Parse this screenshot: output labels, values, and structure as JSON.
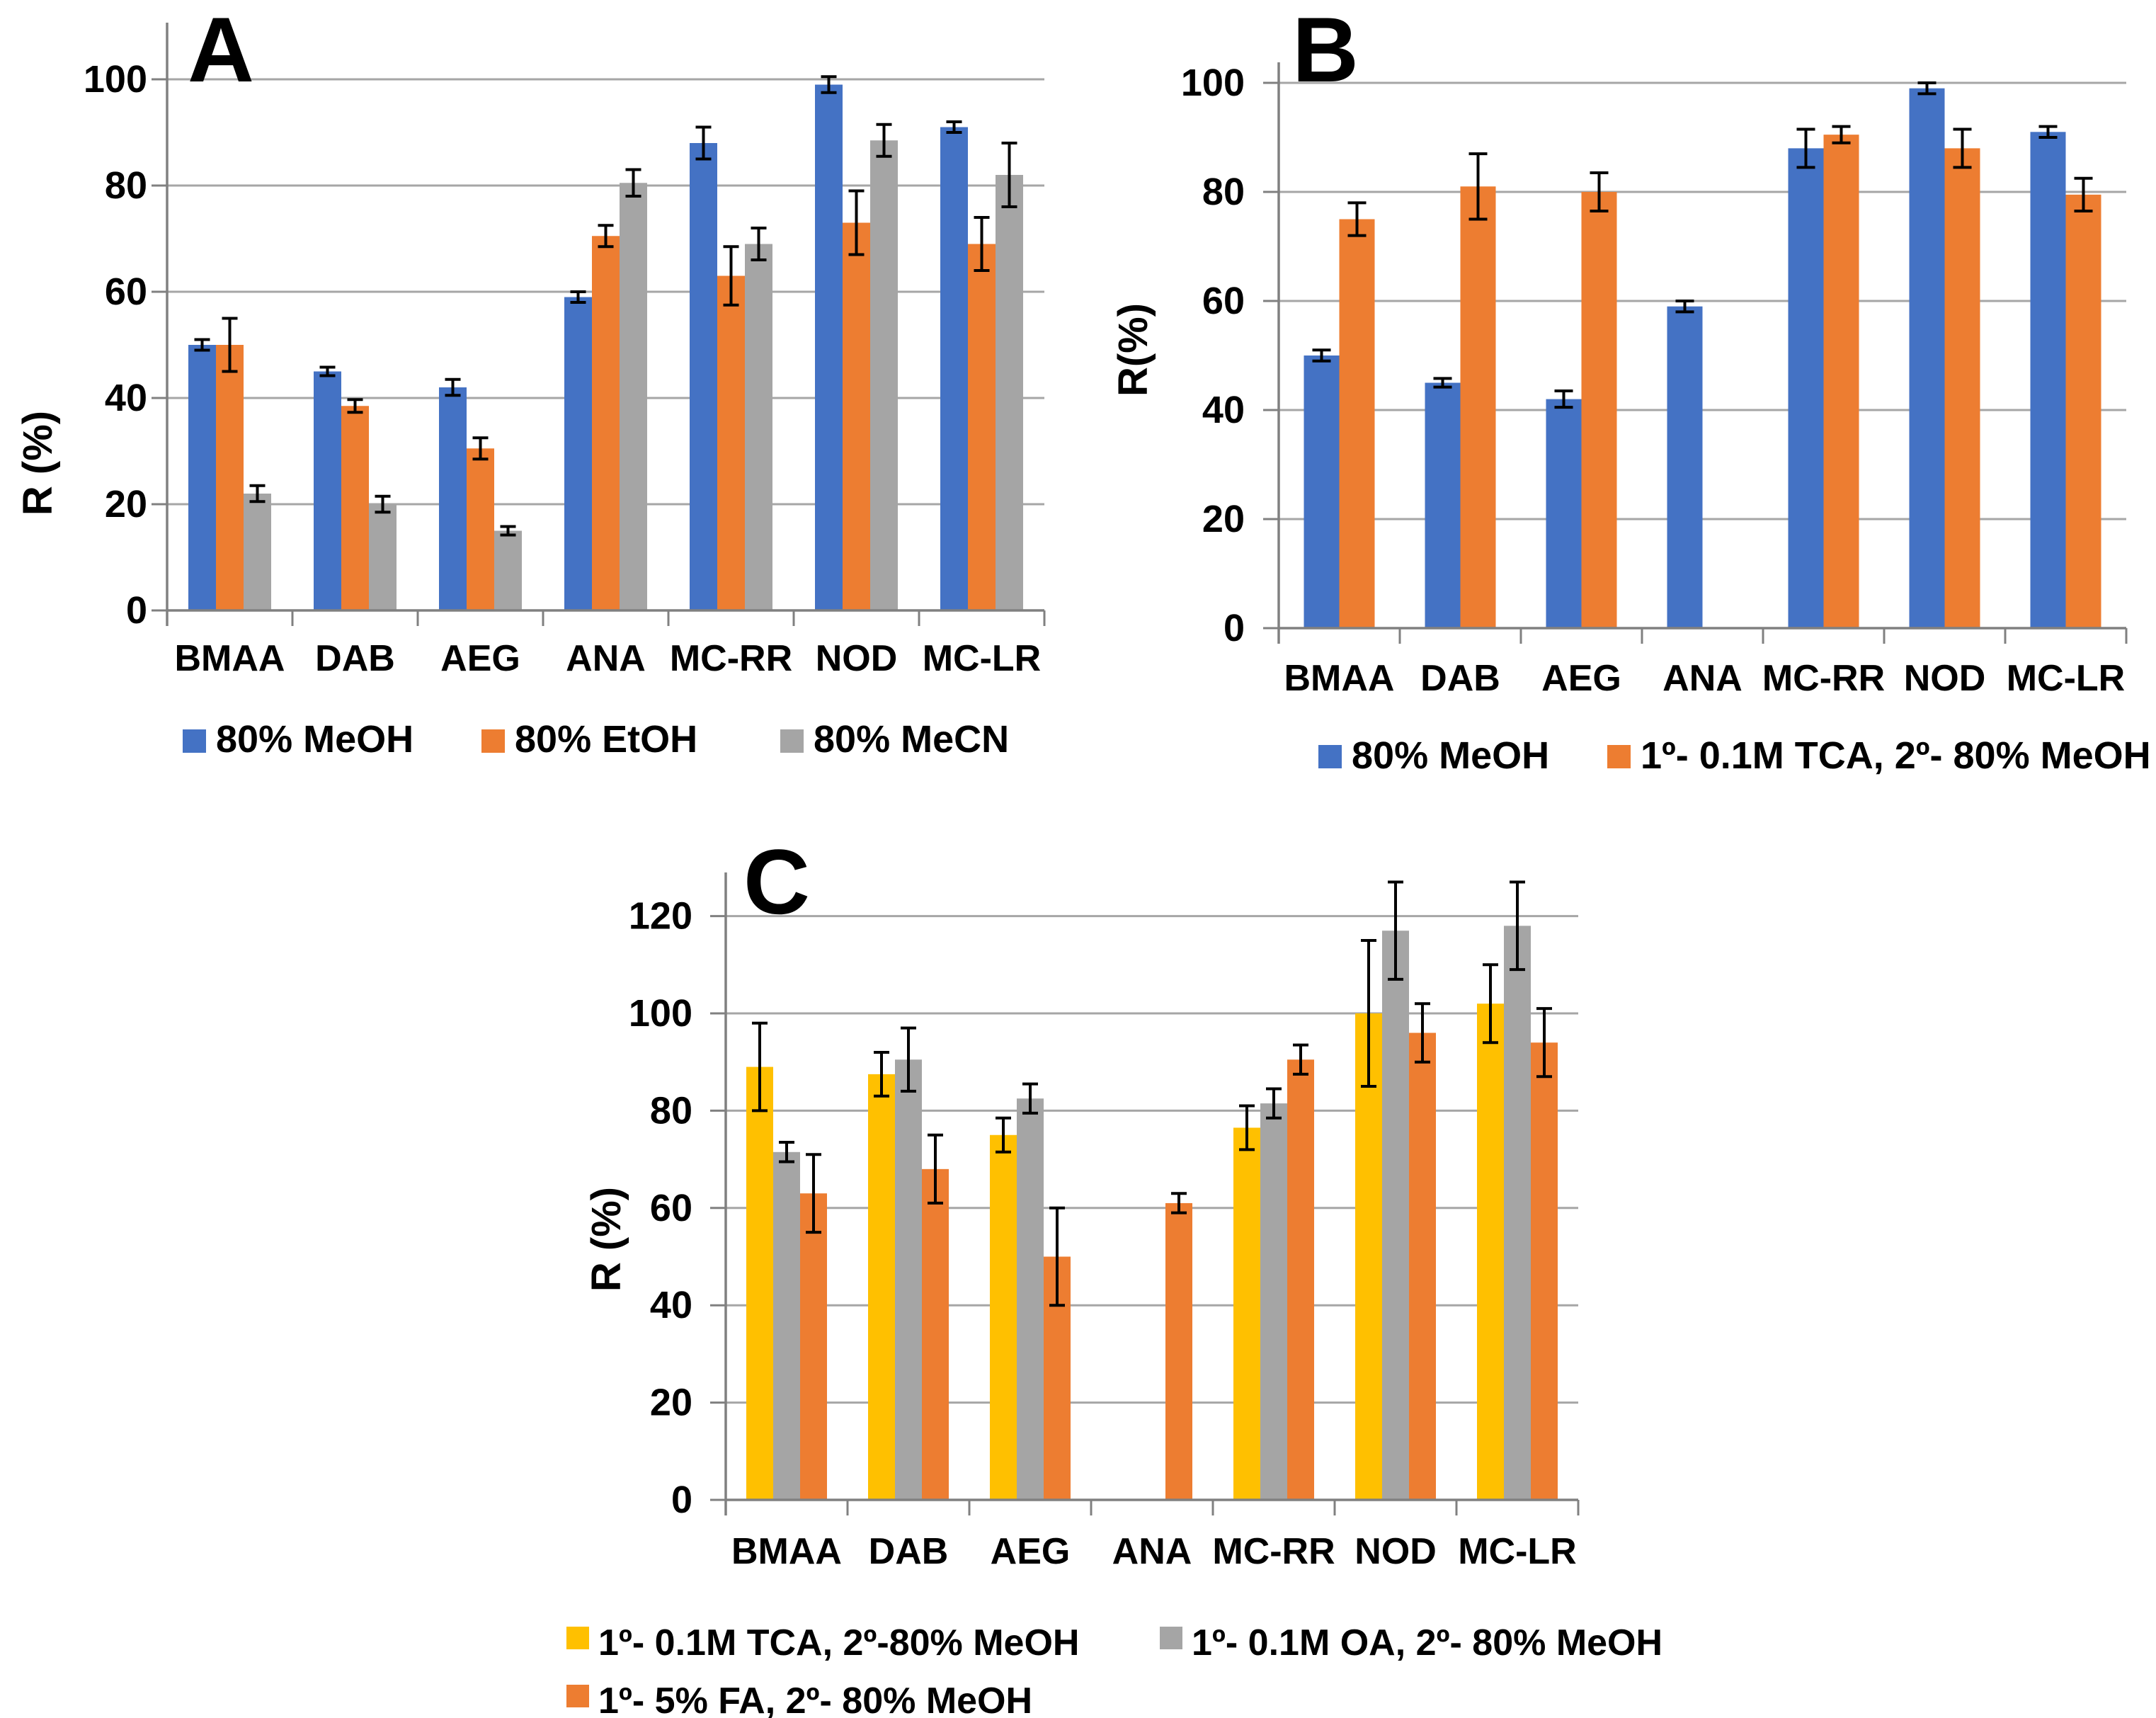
{
  "figure": {
    "background": "#FFFFFF",
    "description": "Three-panel grouped bar figure comparing extraction recoveries (R %) of cyanotoxins"
  },
  "colors": {
    "blue": "#4472C4",
    "orange": "#ED7D31",
    "gray": "#A5A5A5",
    "yellow": "#FFC000",
    "gridline": "#A6A6A6",
    "axis": "#808080",
    "error_bar": "#000000",
    "text": "#000000"
  },
  "chart_data": [
    {
      "id": "A",
      "type": "bar",
      "panel_label": "A",
      "ylabel": "R (%)",
      "xlabel": "",
      "ylim": [
        0,
        100
      ],
      "yticks": [
        0,
        20,
        40,
        60,
        80,
        100
      ],
      "grid": "horizontal",
      "legend_position": "bottom",
      "categories": [
        "BMAA",
        "DAB",
        "AEG",
        "ANA",
        "MC-RR",
        "NOD",
        "MC-LR"
      ],
      "series": [
        {
          "name": "80% MeOH",
          "color_key": "blue",
          "values": [
            50,
            45,
            42,
            59,
            88,
            99,
            91
          ],
          "errors": [
            1,
            0.8,
            1.5,
            1,
            3,
            1.5,
            1
          ]
        },
        {
          "name": "80% EtOH",
          "color_key": "orange",
          "values": [
            50,
            38.5,
            30.5,
            70.5,
            63,
            73,
            69
          ],
          "errors": [
            5,
            1.2,
            2,
            2,
            5.5,
            6,
            5
          ]
        },
        {
          "name": "80% MeCN",
          "color_key": "gray",
          "values": [
            22,
            20,
            15,
            80.5,
            69,
            88.5,
            82
          ],
          "errors": [
            1.5,
            1.5,
            0.8,
            2.5,
            3,
            3,
            6
          ]
        }
      ]
    },
    {
      "id": "B",
      "type": "bar",
      "panel_label": "B",
      "ylabel": "R(%)",
      "xlabel": "",
      "ylim": [
        0,
        100
      ],
      "yticks": [
        0,
        20,
        40,
        60,
        80,
        100
      ],
      "grid": "horizontal",
      "legend_position": "bottom",
      "categories": [
        "BMAA",
        "DAB",
        "AEG",
        "ANA",
        "MC-RR",
        "NOD",
        "MC-LR"
      ],
      "series": [
        {
          "name": "80% MeOH",
          "color_key": "blue",
          "values": [
            50,
            45,
            42,
            59,
            88,
            99,
            91
          ],
          "errors": [
            1,
            0.8,
            1.5,
            1,
            3.5,
            1,
            1
          ]
        },
        {
          "name": "1º- 0.1M TCA, 2º- 80% MeOH",
          "color_key": "orange",
          "values": [
            75,
            81,
            80,
            null,
            90.5,
            88,
            79.5
          ],
          "errors": [
            3,
            6,
            3.5,
            null,
            1.5,
            3.5,
            3
          ]
        }
      ]
    },
    {
      "id": "C",
      "type": "bar",
      "panel_label": "C",
      "ylabel": "R (%)",
      "xlabel": "",
      "ylim": [
        0,
        120
      ],
      "yticks": [
        0,
        20,
        40,
        60,
        80,
        100,
        120
      ],
      "grid": "horizontal",
      "legend_position": "bottom",
      "categories": [
        "BMAA",
        "DAB",
        "AEG",
        "ANA",
        "MC-RR",
        "NOD",
        "MC-LR"
      ],
      "series": [
        {
          "name": "1º- 0.1M TCA, 2º-80% MeOH",
          "color_key": "yellow",
          "values": [
            89,
            87.5,
            75,
            null,
            76.5,
            100,
            102
          ],
          "errors": [
            9,
            4.5,
            3.5,
            null,
            4.5,
            15,
            8
          ]
        },
        {
          "name": "1º- 0.1M OA, 2º- 80% MeOH",
          "color_key": "gray",
          "values": [
            71.5,
            90.5,
            82.5,
            null,
            81.5,
            117,
            118
          ],
          "errors": [
            2,
            6.5,
            3,
            null,
            3,
            10,
            9
          ]
        },
        {
          "name": "1º- 5% FA, 2º- 80% MeOH",
          "color_key": "orange",
          "values": [
            63,
            68,
            50,
            61,
            90.5,
            96,
            94
          ],
          "errors": [
            8,
            7,
            10,
            2,
            3,
            6,
            7
          ]
        }
      ]
    }
  ]
}
